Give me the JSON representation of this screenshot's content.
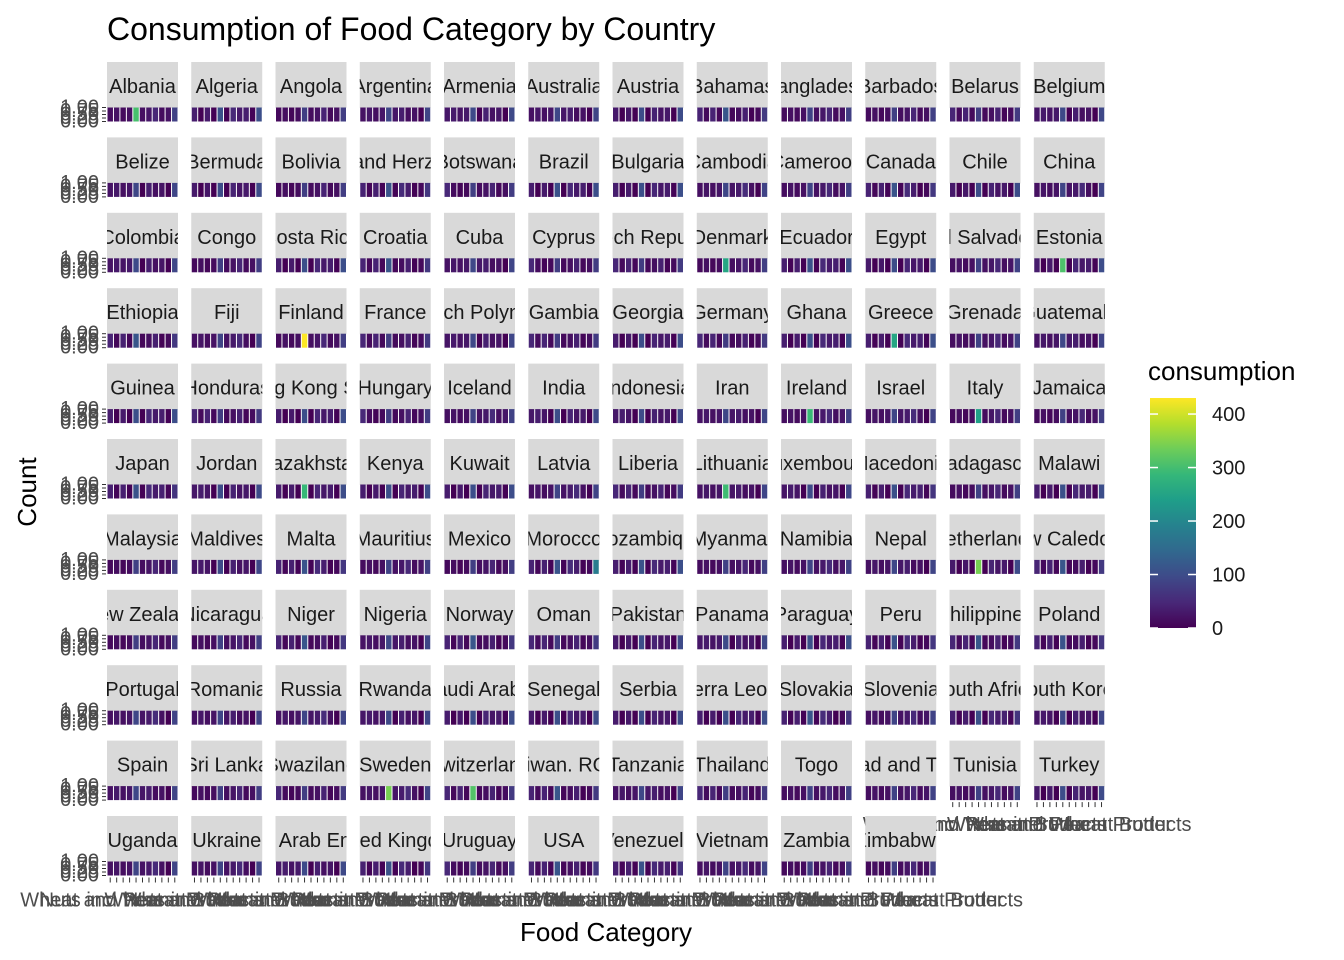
{
  "chart_data": {
    "type": "heatmap",
    "title": "Consumption of Food Category by Country",
    "xlabel": "Food Category",
    "ylabel": "Count",
    "facet_strip_labels": [
      "Albania",
      "Algeria",
      "Angola",
      "Argentina",
      "Armenia",
      "Australia",
      "Austria",
      "Bahamas",
      "Bangladesh",
      "Barbados",
      "Belarus",
      "Belgium",
      "Belize",
      "Bermuda",
      "Bolivia",
      "Bosnia and Herzegovina",
      "Botswana",
      "Brazil",
      "Bulgaria",
      "Cambodia",
      "Cameroon",
      "Canada",
      "Chile",
      "China",
      "Colombia",
      "Congo",
      "Costa Rica",
      "Croatia",
      "Cuba",
      "Cyprus",
      "Czech Republic",
      "Denmark",
      "Ecuador",
      "Egypt",
      "El Salvador",
      "Estonia",
      "Ethiopia",
      "Fiji",
      "Finland",
      "France",
      "French Polynesia",
      "Gambia",
      "Georgia",
      "Germany",
      "Ghana",
      "Greece",
      "Grenada",
      "Guatemala",
      "Guinea",
      "Honduras",
      "Hong Kong SAR",
      "Hungary",
      "Iceland",
      "India",
      "Indonesia",
      "Iran",
      "Ireland",
      "Israel",
      "Italy",
      "Jamaica",
      "Japan",
      "Jordan",
      "Kazakhstan",
      "Kenya",
      "Kuwait",
      "Latvia",
      "Liberia",
      "Lithuania",
      "Luxembourg",
      "Macedonia",
      "Madagascar",
      "Malawi",
      "Malaysia",
      "Maldives",
      "Malta",
      "Mauritius",
      "Mexico",
      "Morocco",
      "Mozambique",
      "Myanmar",
      "Namibia",
      "Nepal",
      "Netherlands",
      "New Caledonia",
      "New Zealand",
      "Nicaragua",
      "Niger",
      "Nigeria",
      "Norway",
      "Oman",
      "Pakistan",
      "Panama",
      "Paraguay",
      "Peru",
      "Philippines",
      "Poland",
      "Portugal",
      "Romania",
      "Russia",
      "Rwanda",
      "Saudi Arabia",
      "Senegal",
      "Serbia",
      "Sierra Leone",
      "Slovakia",
      "Slovenia",
      "South Africa",
      "South Korea",
      "Spain",
      "Sri Lanka",
      "Swaziland",
      "Sweden",
      "Switzerland",
      "Taiwan. ROC",
      "Tanzania",
      "Thailand",
      "Togo",
      "Trinidad and Tobago",
      "Tunisia",
      "Turkey",
      "Uganda",
      "Ukraine",
      "United Arab Emirates",
      "United Kingdom",
      "Uruguay",
      "USA",
      "Venezuela",
      "Vietnam",
      "Zambia",
      "Zimbabwe"
    ],
    "food_categories": [
      "Beef",
      "Eggs",
      "Fish",
      "Lamb & Goat",
      "Milk - inc. cheese",
      "Nuts inc. Peanut Butter",
      "Pork",
      "Poultry",
      "Rice",
      "Soybeans",
      "Wheat and Wheat Products"
    ],
    "x_axis_label_overlap_text": [
      "Nuts inc. Peanut Butter",
      "Wheat and Wheat Products"
    ],
    "y_ticks": [
      "0.00",
      "0.25",
      "0.50",
      "0.75",
      "1.00"
    ],
    "ylim": [
      0,
      1
    ],
    "highlighted_cells": [
      {
        "country": "Albania",
        "category": "Milk - inc. cheese",
        "consumption": 303
      },
      {
        "country": "Finland",
        "category": "Milk - inc. cheese",
        "consumption": 430
      },
      {
        "country": "Netherlands",
        "category": "Milk - inc. cheese",
        "consumption": 341
      },
      {
        "country": "Sweden",
        "category": "Milk - inc. cheese",
        "consumption": 341
      },
      {
        "country": "Switzerland",
        "category": "Milk - inc. cheese",
        "consumption": 312
      },
      {
        "country": "Estonia",
        "category": "Milk - inc. cheese",
        "consumption": 308
      },
      {
        "country": "Denmark",
        "category": "Milk - inc. cheese",
        "consumption": 255
      },
      {
        "country": "Lithuania",
        "category": "Milk - inc. cheese",
        "consumption": 295
      },
      {
        "country": "Ireland",
        "category": "Milk - inc. cheese",
        "consumption": 291
      },
      {
        "country": "Greece",
        "category": "Milk - inc. cheese",
        "consumption": 254
      },
      {
        "country": "Kazakhstan",
        "category": "Milk - inc. cheese",
        "consumption": 288
      },
      {
        "country": "Italy",
        "category": "Milk - inc. cheese",
        "consumption": 243
      },
      {
        "country": "Morocco",
        "category": "Wheat and Wheat Products",
        "consumption": 180
      }
    ],
    "legend": {
      "title": "consumption",
      "placement": "right",
      "breaks": [
        0,
        100,
        200,
        300,
        400
      ],
      "labels": [
        "0",
        "100",
        "200",
        "300",
        "400"
      ],
      "range": [
        0,
        430
      ]
    },
    "colors": {
      "viridis": [
        "#440154",
        "#482878",
        "#3E4A89",
        "#31688E",
        "#26828E",
        "#1F9E89",
        "#35B779",
        "#6DCD59",
        "#B4DE2C",
        "#FDE725"
      ],
      "strip_bg": "#d9d9d9"
    }
  }
}
